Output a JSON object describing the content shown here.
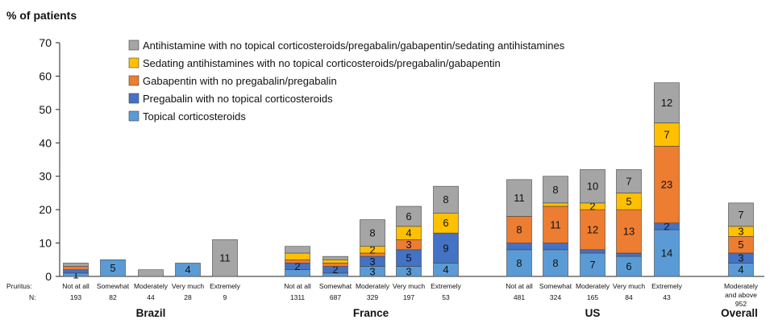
{
  "chart_data": {
    "type": "bar",
    "stacked": true,
    "title": "",
    "ylabel": "% of patients",
    "ylim": [
      0,
      70
    ],
    "yticks": [
      0,
      10,
      20,
      30,
      40,
      50,
      60,
      70
    ],
    "grid": false,
    "legend_position": "top",
    "row_labels": {
      "pruritus": "Pruritus:",
      "n": "N:"
    },
    "series": [
      {
        "name": "Topical corticosteroids",
        "color": "#5B9BD5"
      },
      {
        "name": "Pregabalin with no topical corticosteroids",
        "color": "#4472C4"
      },
      {
        "name": "Gabapentin with no pregabalin/pregabalin",
        "color": "#ED7D31"
      },
      {
        "name": "Sedating antihistamines with no topical corticosteroids/pregabalin/gabapentin",
        "color": "#FFC000"
      },
      {
        "name": "Antihistamine with no topical corticosteroids/pregabalin/gabapentin/sedating antihistamines",
        "color": "#A5A5A5"
      }
    ],
    "groups": [
      {
        "name": "Brazil",
        "bars": [
          {
            "category": "Not at all",
            "n": "193",
            "values": [
              1,
              1,
              1,
              0,
              1
            ],
            "labels": [
              "1",
              "",
              "",
              "",
              ""
            ]
          },
          {
            "category": "Somewhat",
            "n": "82",
            "values": [
              5,
              0,
              0,
              0,
              0
            ],
            "labels": [
              "5",
              "",
              "",
              "",
              ""
            ]
          },
          {
            "category": "Moderately",
            "n": "44",
            "values": [
              0,
              0,
              0,
              0,
              2
            ],
            "labels": [
              "",
              "",
              "",
              "",
              ""
            ]
          },
          {
            "category": "Very much",
            "n": "28",
            "values": [
              4,
              0,
              0,
              0,
              0
            ],
            "labels": [
              "4",
              "",
              "",
              "",
              ""
            ]
          },
          {
            "category": "Extremely",
            "n": "9",
            "values": [
              0,
              0,
              0,
              0,
              11
            ],
            "labels": [
              "",
              "",
              "",
              "",
              "11"
            ]
          }
        ]
      },
      {
        "name": "France",
        "bars": [
          {
            "category": "Not at all",
            "n": "1311",
            "values": [
              2,
              2,
              1,
              2,
              2
            ],
            "labels": [
              "",
              "2",
              "",
              "",
              ""
            ]
          },
          {
            "category": "Somewhat",
            "n": "687",
            "values": [
              1,
              2,
              1,
              1,
              1
            ],
            "labels": [
              "",
              "2",
              "",
              "",
              ""
            ]
          },
          {
            "category": "Moderately",
            "n": "329",
            "values": [
              3,
              3,
              1,
              2,
              8
            ],
            "labels": [
              "3",
              "3",
              "",
              "2",
              "8"
            ]
          },
          {
            "category": "Very much",
            "n": "197",
            "values": [
              3,
              5,
              3,
              4,
              6
            ],
            "labels": [
              "3",
              "5",
              "3",
              "4",
              "6"
            ]
          },
          {
            "category": "Extremely",
            "n": "53",
            "values": [
              4,
              9,
              0,
              6,
              8
            ],
            "labels": [
              "4",
              "9",
              "",
              "6",
              "8"
            ]
          }
        ]
      },
      {
        "name": "US",
        "bars": [
          {
            "category": "Not at all",
            "n": "481",
            "values": [
              8,
              2,
              8,
              0,
              11
            ],
            "labels": [
              "8",
              "",
              "8",
              "",
              "11"
            ]
          },
          {
            "category": "Somewhat",
            "n": "324",
            "values": [
              8,
              2,
              11,
              1,
              8
            ],
            "labels": [
              "8",
              "",
              "11",
              "",
              "8"
            ]
          },
          {
            "category": "Moderately",
            "n": "165",
            "values": [
              7,
              1,
              12,
              2,
              10
            ],
            "labels": [
              "7",
              "",
              "12",
              "2",
              "10"
            ]
          },
          {
            "category": "Very much",
            "n": "84",
            "values": [
              6,
              1,
              13,
              5,
              7
            ],
            "labels": [
              "6",
              "",
              "13",
              "5",
              "7"
            ]
          },
          {
            "category": "Extremely",
            "n": "43",
            "values": [
              14,
              2,
              23,
              7,
              12
            ],
            "labels": [
              "14",
              "2",
              "23",
              "7",
              "12"
            ]
          }
        ]
      },
      {
        "name": "Overall",
        "bars": [
          {
            "category": "Moderately and above",
            "n": "952",
            "values": [
              4,
              3,
              5,
              3,
              7
            ],
            "labels": [
              "4",
              "3",
              "5",
              "3",
              "7"
            ]
          }
        ]
      }
    ]
  }
}
